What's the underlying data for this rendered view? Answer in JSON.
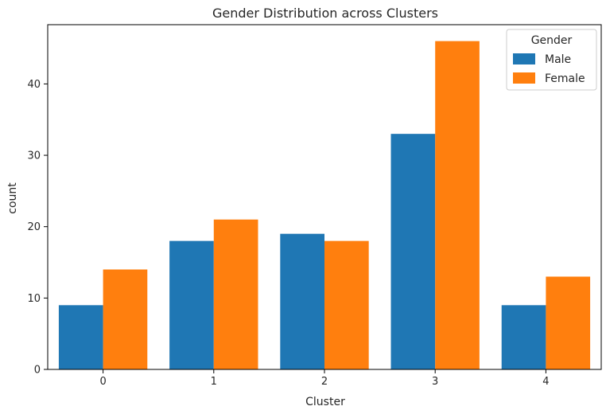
{
  "chart_data": {
    "type": "bar",
    "title": "Gender Distribution across Clusters",
    "xlabel": "Cluster",
    "ylabel": "count",
    "categories": [
      "0",
      "1",
      "2",
      "3",
      "4"
    ],
    "series": [
      {
        "name": "Male",
        "color": "#1f77b4",
        "values": [
          9,
          18,
          19,
          33,
          9
        ]
      },
      {
        "name": "Female",
        "color": "#ff7f0e",
        "values": [
          14,
          21,
          18,
          46,
          13
        ]
      }
    ],
    "ylim": [
      0,
      48.3
    ],
    "yticks": [
      0,
      10,
      20,
      30,
      40
    ],
    "grid": false,
    "legend": {
      "title": "Gender",
      "placement": "top-right"
    }
  }
}
